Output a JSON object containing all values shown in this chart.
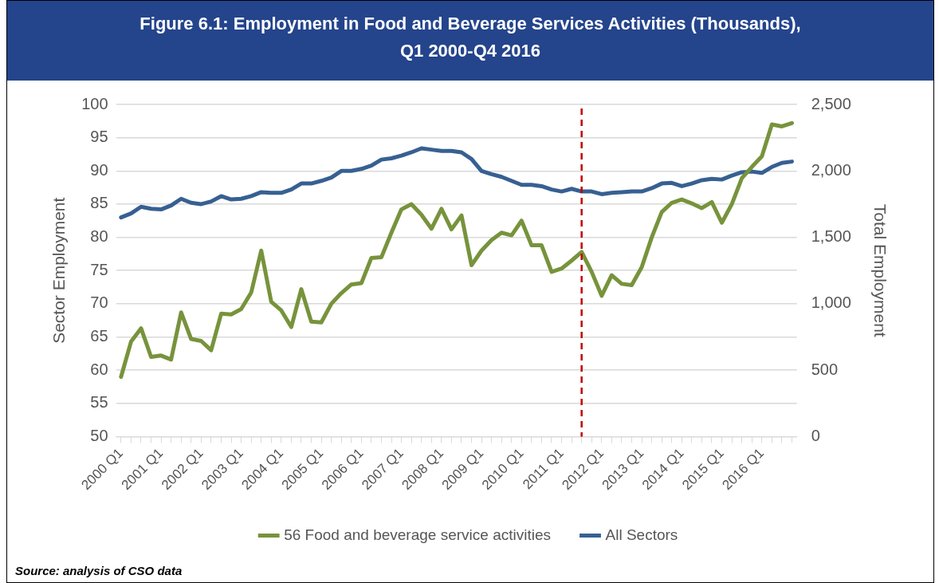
{
  "chart_data": {
    "type": "line",
    "title": "Figure 6.1: Employment in Food and Beverage Services Activities (Thousands), Q1 2000-Q4 2016",
    "ylabel": "Sector Employment",
    "y2label": "Total Employment",
    "categories": [
      "2000 Q1",
      null,
      null,
      null,
      "2001 Q1",
      null,
      null,
      null,
      "2002 Q1",
      null,
      null,
      null,
      "2003 Q1",
      null,
      null,
      null,
      "2004 Q1",
      null,
      null,
      null,
      "2005 Q1",
      null,
      null,
      null,
      "2006 Q1",
      null,
      null,
      null,
      "2007 Q1",
      null,
      null,
      null,
      "2008 Q1",
      null,
      null,
      null,
      "2009 Q1",
      null,
      null,
      null,
      "2010 Q1",
      null,
      null,
      null,
      "2011 Q1",
      null,
      null,
      null,
      "2012 Q1",
      null,
      null,
      null,
      "2013 Q1",
      null,
      null,
      null,
      "2014 Q1",
      null,
      null,
      null,
      "2015 Q1",
      null,
      null,
      null,
      "2016 Q1",
      null,
      null,
      null
    ],
    "series": [
      {
        "name": "56 Food and beverage service activities",
        "color": "#77933c",
        "values": [
          59,
          64.3,
          66.3,
          62,
          62.2,
          61.6,
          68.7,
          64.7,
          64.4,
          63,
          68.5,
          68.4,
          69.2,
          71.7,
          78,
          70.3,
          69,
          66.5,
          72.2,
          67.3,
          67.2,
          70,
          71.6,
          72.9,
          73.1,
          76.9,
          77,
          80.7,
          84.2,
          85,
          83.4,
          81.3,
          84.3,
          81.2,
          83.3,
          75.8,
          78,
          79.6,
          80.7,
          80.3,
          82.5,
          78.8,
          78.8,
          74.8,
          75.3,
          76.5,
          77.8,
          74.8,
          71.2,
          74.3,
          73,
          72.8,
          75.5,
          80,
          83.8,
          85.2,
          85.7,
          85.1,
          84.4,
          85.3,
          82.2,
          85,
          88.9,
          90.6,
          92.2,
          97,
          96.7,
          97.2
        ]
      },
      {
        "name": "All Sectors",
        "color": "#376092",
        "axis": "y2",
        "values": [
          1650,
          1680,
          1730,
          1715,
          1710,
          1740,
          1790,
          1760,
          1750,
          1770,
          1810,
          1785,
          1790,
          1810,
          1840,
          1835,
          1835,
          1860,
          1905,
          1905,
          1925,
          1950,
          2000,
          2000,
          2015,
          2040,
          2085,
          2095,
          2115,
          2140,
          2170,
          2160,
          2150,
          2150,
          2140,
          2090,
          2000,
          1975,
          1955,
          1925,
          1895,
          1895,
          1885,
          1860,
          1845,
          1865,
          1845,
          1845,
          1825,
          1835,
          1840,
          1845,
          1845,
          1870,
          1905,
          1910,
          1885,
          1905,
          1930,
          1940,
          1935,
          1965,
          1990,
          1995,
          1985,
          2030,
          2060,
          2070
        ]
      }
    ],
    "ylim": [
      50,
      100
    ],
    "yticks": [
      50,
      55,
      60,
      65,
      70,
      75,
      80,
      85,
      90,
      95,
      100
    ],
    "y2lim": [
      0,
      2500
    ],
    "y2ticks": [
      0,
      500,
      {
        "value": 1000,
        "label": "1,000"
      },
      {
        "value": 1500,
        "label": "1,500"
      },
      {
        "value": 2000,
        "label": "2,000"
      },
      {
        "value": 2500,
        "label": "2,500"
      }
    ],
    "grid": "y",
    "legend": "bottom",
    "marker": "none",
    "line_style": "solid",
    "annotations": [
      "Source: analysis of CSO data"
    ]
  }
}
